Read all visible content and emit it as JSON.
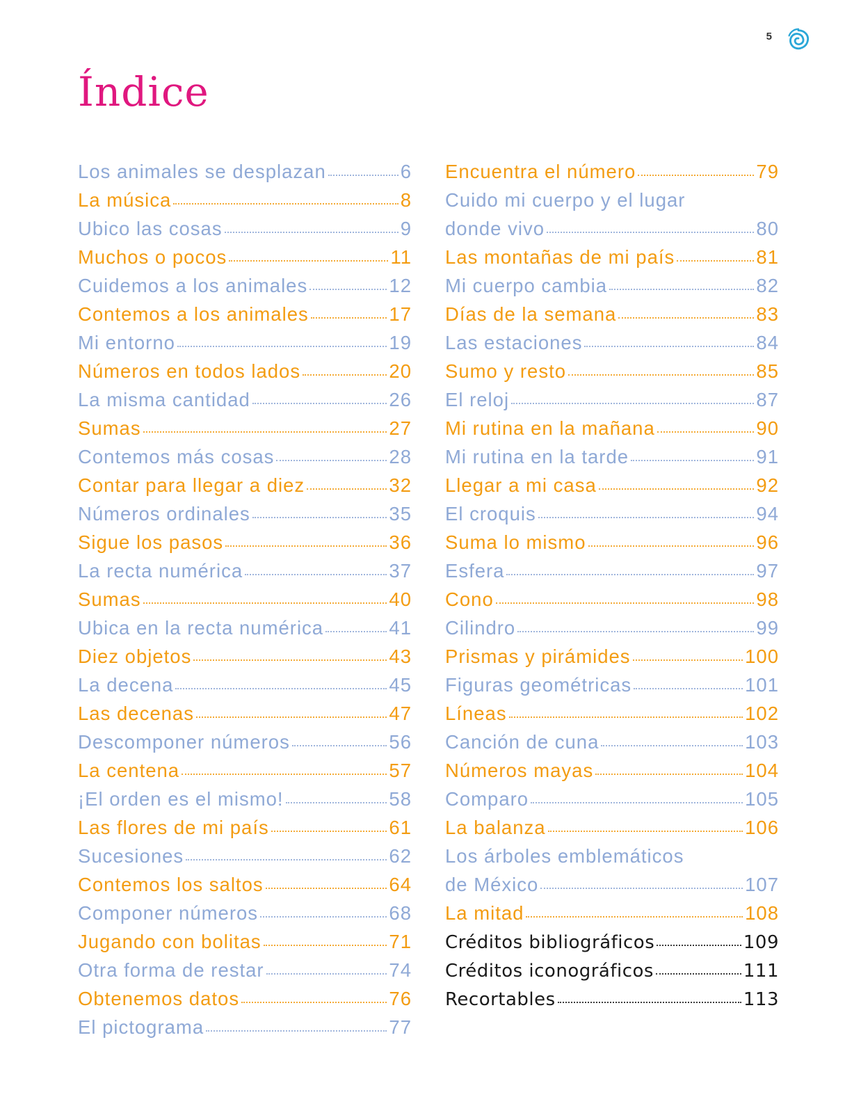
{
  "page_number": "5",
  "title": "Índice",
  "colors": {
    "blue": "#8fa9d6",
    "orange": "#f39c12",
    "black": "#1a1a1a",
    "title": "#e0177f",
    "logo": "#2aa7d8"
  },
  "logo_icon": "spiral-swirl-icon",
  "left_column": [
    {
      "label": "Los animales se desplazan",
      "page": "6",
      "color": "blue"
    },
    {
      "label": "La música",
      "page": "8",
      "color": "orange"
    },
    {
      "label": "Ubico las cosas",
      "page": "9",
      "color": "blue"
    },
    {
      "label": "Muchos o pocos",
      "page": "11",
      "color": "orange"
    },
    {
      "label": "Cuidemos a los animales",
      "page": "12",
      "color": "blue"
    },
    {
      "label": "Contemos a los animales",
      "page": "17",
      "color": "orange"
    },
    {
      "label": "Mi entorno",
      "page": "19",
      "color": "blue"
    },
    {
      "label": "Números en todos lados",
      "page": "20",
      "color": "orange"
    },
    {
      "label": "La misma cantidad",
      "page": "26",
      "color": "blue"
    },
    {
      "label": "Sumas",
      "page": "27",
      "color": "orange"
    },
    {
      "label": "Contemos más cosas",
      "page": "28",
      "color": "blue"
    },
    {
      "label": "Contar para llegar a diez",
      "page": "32",
      "color": "orange"
    },
    {
      "label": "Números ordinales",
      "page": "35",
      "color": "blue"
    },
    {
      "label": "Sigue los pasos",
      "page": "36",
      "color": "orange"
    },
    {
      "label": "La recta numérica",
      "page": "37",
      "color": "blue"
    },
    {
      "label": "Sumas",
      "page": "40",
      "color": "orange"
    },
    {
      "label": "Ubica en la recta numérica",
      "page": "41",
      "color": "blue"
    },
    {
      "label": "Diez objetos",
      "page": "43",
      "color": "orange"
    },
    {
      "label": "La decena",
      "page": "45",
      "color": "blue"
    },
    {
      "label": "Las decenas",
      "page": "47",
      "color": "orange"
    },
    {
      "label": "Descomponer números",
      "page": "56",
      "color": "blue"
    },
    {
      "label": "La centena",
      "page": "57",
      "color": "orange"
    },
    {
      "label": "¡El orden es el mismo!",
      "page": "58",
      "color": "blue"
    },
    {
      "label": "Las flores de mi país",
      "page": "61",
      "color": "orange"
    },
    {
      "label": "Sucesiones",
      "page": "62",
      "color": "blue"
    },
    {
      "label": "Contemos los saltos",
      "page": "64",
      "color": "orange"
    },
    {
      "label": "Componer números",
      "page": "68",
      "color": "blue"
    },
    {
      "label": "Jugando con bolitas",
      "page": "71",
      "color": "orange"
    },
    {
      "label": "Otra forma de restar",
      "page": "74",
      "color": "blue"
    },
    {
      "label": "Obtenemos datos",
      "page": "76",
      "color": "orange"
    },
    {
      "label": "El pictograma",
      "page": "77",
      "color": "blue"
    }
  ],
  "right_column": [
    {
      "label": "Encuentra el número",
      "page": "79",
      "color": "orange"
    },
    {
      "label": "Cuido mi cuerpo y el lugar",
      "label2": "donde vivo",
      "page": "80",
      "color": "blue"
    },
    {
      "label": "Las montañas de mi país",
      "page": "81",
      "color": "orange"
    },
    {
      "label": "Mi cuerpo cambia",
      "page": "82",
      "color": "blue"
    },
    {
      "label": "Días de la semana",
      "page": "83",
      "color": "orange"
    },
    {
      "label": "Las estaciones",
      "page": "84",
      "color": "blue"
    },
    {
      "label": "Sumo y resto",
      "page": "85",
      "color": "orange"
    },
    {
      "label": "El reloj",
      "page": "87",
      "color": "blue"
    },
    {
      "label": "Mi rutina en la mañana",
      "page": "90",
      "color": "orange"
    },
    {
      "label": "Mi rutina en la tarde",
      "page": "91",
      "color": "blue"
    },
    {
      "label": "Llegar a mi casa",
      "page": "92",
      "color": "orange"
    },
    {
      "label": "El croquis",
      "page": "94",
      "color": "blue"
    },
    {
      "label": "Suma lo mismo",
      "page": "96",
      "color": "orange"
    },
    {
      "label": "Esfera",
      "page": "97",
      "color": "blue"
    },
    {
      "label": "Cono",
      "page": "98",
      "color": "orange"
    },
    {
      "label": "Cilindro",
      "page": "99",
      "color": "blue"
    },
    {
      "label": "Prismas y pirámides",
      "page": "100",
      "color": "orange"
    },
    {
      "label": "Figuras geométricas",
      "page": "101",
      "color": "blue"
    },
    {
      "label": "Líneas",
      "page": "102",
      "color": "orange"
    },
    {
      "label": "Canción de cuna",
      "page": "103",
      "color": "blue"
    },
    {
      "label": "Números mayas",
      "page": "104",
      "color": "orange"
    },
    {
      "label": "Comparo",
      "page": "105",
      "color": "blue"
    },
    {
      "label": "La balanza",
      "page": "106",
      "color": "orange"
    },
    {
      "label": "Los árboles emblemáticos",
      "label2": "de México",
      "page": "107",
      "color": "blue"
    },
    {
      "label": "La mitad",
      "page": "108",
      "color": "orange"
    },
    {
      "label": "Créditos bibliográficos",
      "page": "109",
      "color": "black"
    },
    {
      "label": "Créditos iconográficos",
      "page": "111",
      "color": "black"
    },
    {
      "label": "Recortables",
      "page": "113",
      "color": "black"
    }
  ]
}
